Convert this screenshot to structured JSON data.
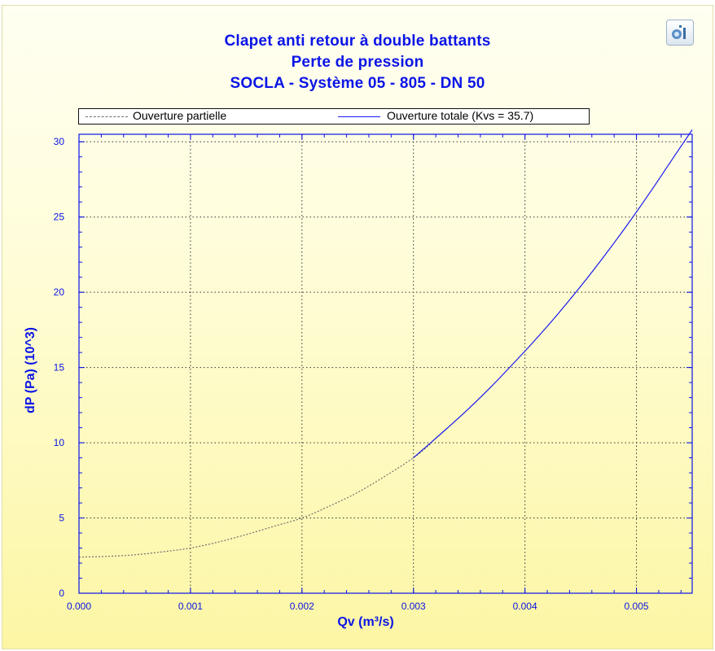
{
  "toolbar": {
    "export_icon": "chart-export-icon"
  },
  "chart_data": {
    "type": "line",
    "title": "Clapet anti retour à double battants",
    "subtitle": "Perte de pression",
    "subtitle2": "SOCLA - Système 05 - 805 - DN 50",
    "xlabel": "Qv (m³/s)",
    "ylabel": "dP (Pa) (10^3)",
    "xlim": [
      0,
      0.0055
    ],
    "ylim": [
      0,
      30.5
    ],
    "xticks": [
      0,
      0.001,
      0.002,
      0.003,
      0.004,
      0.005
    ],
    "xtick_labels": [
      "0.000",
      "0.001",
      "0.002",
      "0.003",
      "0.004",
      "0.005"
    ],
    "yticks": [
      0,
      5,
      10,
      15,
      20,
      25,
      30
    ],
    "ytick_labels": [
      "0",
      "5",
      "10",
      "15",
      "20",
      "25",
      "30"
    ],
    "grid": true,
    "legend_position": "top",
    "series": [
      {
        "name": "Ouverture partielle",
        "color": "#6f6f6f",
        "style": "dashed",
        "x": [
          0,
          0.00025,
          0.0005,
          0.00075,
          0.001,
          0.00125,
          0.0015,
          0.00175,
          0.002,
          0.00225,
          0.0025,
          0.00275,
          0.003,
          0.00315
        ],
        "y": [
          2.4,
          2.45,
          2.55,
          2.75,
          3.0,
          3.4,
          3.9,
          4.45,
          5.0,
          5.8,
          6.7,
          7.8,
          9.0,
          9.9
        ]
      },
      {
        "name": "Ouverture totale (Kvs = 35.7)",
        "color": "#1a1af0",
        "style": "solid",
        "x": [
          0.003,
          0.0031,
          0.0033,
          0.0035,
          0.0037,
          0.0039,
          0.0041,
          0.0043,
          0.0045,
          0.0047,
          0.0049,
          0.0051,
          0.0053,
          0.0055
        ],
        "y": [
          9.0,
          9.65,
          10.95,
          12.3,
          13.75,
          15.3,
          16.9,
          18.6,
          20.4,
          22.3,
          24.3,
          26.4,
          28.6,
          30.8
        ]
      }
    ]
  }
}
